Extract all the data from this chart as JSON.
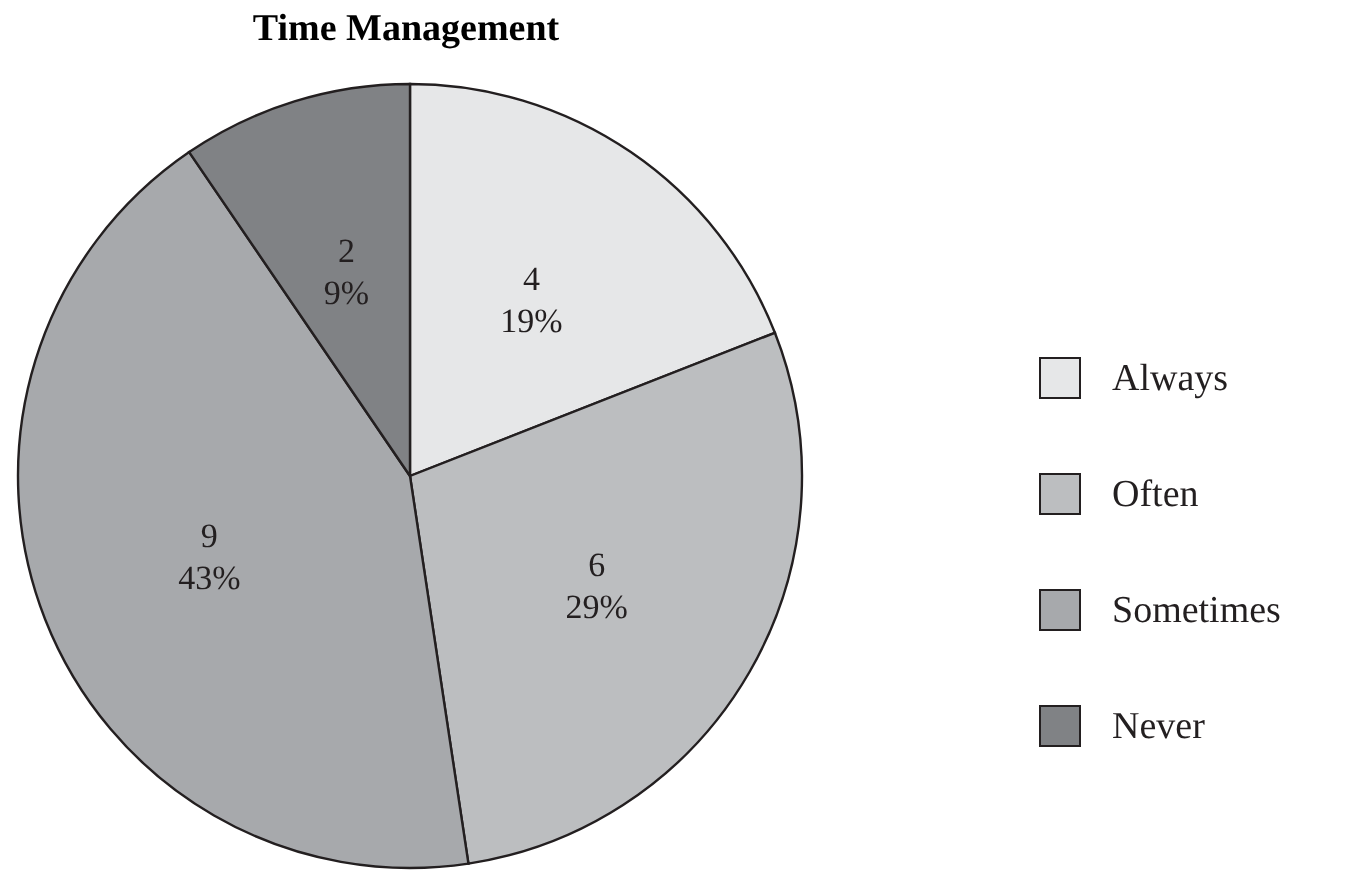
{
  "chart_data": {
    "type": "pie",
    "title": "Time Management",
    "categories": [
      "Always",
      "Often",
      "Sometimes",
      "Never"
    ],
    "values": [
      4,
      6,
      9,
      2
    ],
    "value_labels": [
      "4\n19%",
      "6\n29%",
      "9\n43%",
      "2\n9%"
    ],
    "colors": [
      "#e6e7e8",
      "#bcbec0",
      "#a7a9ac",
      "#808285"
    ],
    "legend": "right"
  }
}
